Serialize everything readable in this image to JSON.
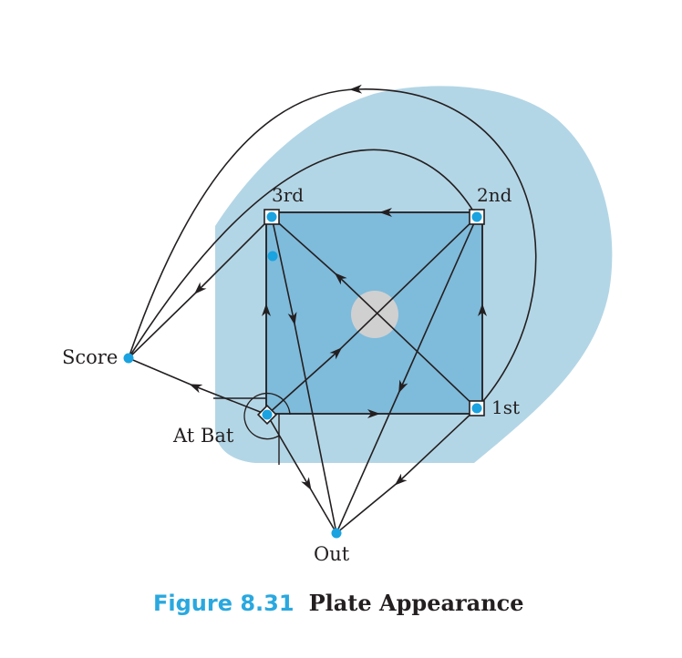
{
  "nodes": {
    "third": "3rd",
    "second": "2nd",
    "first": "1st",
    "at_bat": "At Bat",
    "score": "Score",
    "out": "Out"
  },
  "caption": {
    "number": "Figure 8.31",
    "title": "Plate Appearance"
  },
  "colors": {
    "outfield": "#b3d6e6",
    "infield": "#7fbbdb",
    "pitcher_mound": "#d0d0d0",
    "node": "#1aa3e0",
    "edge": "#231f20",
    "caption_number": "#2aa8df"
  }
}
